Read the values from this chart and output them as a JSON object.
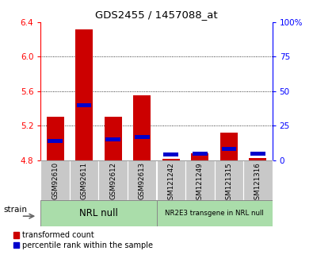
{
  "title": "GDS2455 / 1457088_at",
  "samples": [
    "GSM92610",
    "GSM92611",
    "GSM92612",
    "GSM92613",
    "GSM121242",
    "GSM121249",
    "GSM121315",
    "GSM121316"
  ],
  "transformed_counts": [
    5.3,
    6.31,
    5.3,
    5.55,
    4.82,
    4.88,
    5.12,
    4.83
  ],
  "percentile_ranks": [
    14,
    40,
    15,
    17,
    4,
    5,
    8,
    5
  ],
  "y_min": 4.8,
  "y_max": 6.4,
  "y_ticks": [
    4.8,
    5.2,
    5.6,
    6.0,
    6.4
  ],
  "right_y_ticks": [
    0,
    25,
    50,
    75,
    100
  ],
  "right_y_labels": [
    "0",
    "25",
    "50",
    "75",
    "100%"
  ],
  "bar_color_red": "#cc0000",
  "bar_color_blue": "#0000cc",
  "group1_label": "NRL null",
  "group2_label": "NR2E3 transgene in NRL null",
  "group_bg_color": "#aaddaa",
  "tick_label_bg": "#c8c8c8",
  "legend_red_label": "transformed count",
  "legend_blue_label": "percentile rank within the sample",
  "strain_label": "strain"
}
